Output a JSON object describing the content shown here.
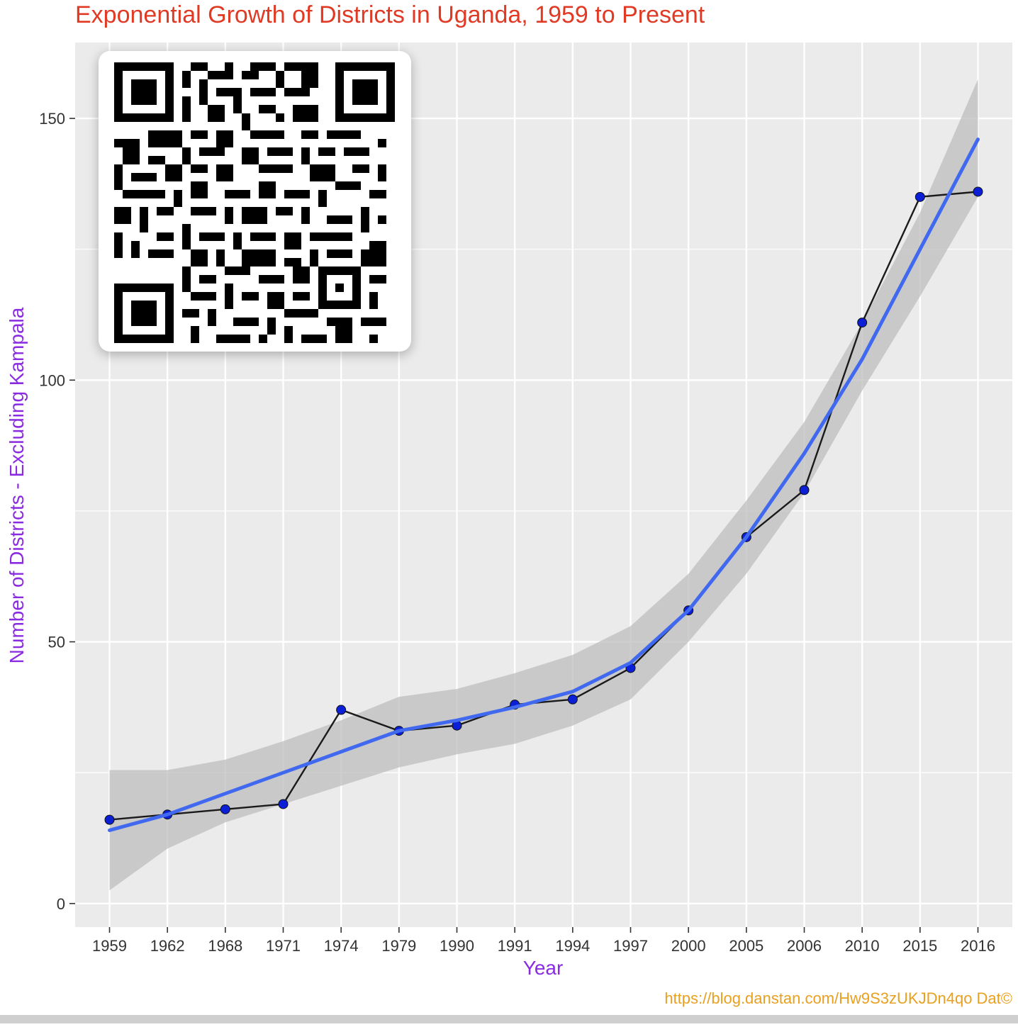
{
  "colors": {
    "title": "#e03a24",
    "axis_label": "#8a2be2",
    "credit": "#e8a020",
    "panel_bg": "#ebebeb",
    "grid": "#ffffff",
    "points": "#0a1fd6",
    "observed_line": "#1a1a1a",
    "smooth_line": "#4169f0",
    "ribbon": "#bdbdbd",
    "tick_text": "#333333"
  },
  "credit_text": "https://blog.danstan.com/Hw9S3zUKJDn4qo Dat©",
  "qr_code": {
    "icon": "qr-code-icon",
    "description_free": true
  },
  "chart_data": {
    "type": "line",
    "title": "Exponential Growth of Districts in Uganda, 1959 to Present",
    "xlabel": "Year",
    "ylabel": "Number  of Districts - Excluding Kampala",
    "categories": [
      "1959",
      "1962",
      "1968",
      "1971",
      "1974",
      "1979",
      "1990",
      "1991",
      "1994",
      "1997",
      "2000",
      "2005",
      "2006",
      "2010",
      "2015",
      "2016"
    ],
    "x_axis_kind": "discrete",
    "ylim": [
      -4.5,
      164.5
    ],
    "yticks": [
      0,
      50,
      100,
      150
    ],
    "grid": true,
    "legend": "none",
    "series": [
      {
        "kind": "observed",
        "values": [
          16,
          17,
          18,
          19,
          37,
          33,
          34,
          38,
          39,
          45,
          56,
          70,
          79,
          111,
          135,
          136
        ]
      },
      {
        "kind": "smooth",
        "values": [
          14,
          17,
          21,
          25,
          29,
          33,
          35,
          37.5,
          40.5,
          46,
          56,
          70,
          86,
          104,
          125,
          146
        ]
      }
    ],
    "confidence_band": {
      "lower": [
        2.5,
        10.5,
        15.5,
        19,
        22.5,
        26,
        28.5,
        30.5,
        34,
        39,
        50,
        63,
        78.5,
        98,
        116,
        135
      ],
      "upper": [
        25.5,
        25.5,
        27.5,
        31,
        35,
        39.5,
        41,
        44,
        47.5,
        53,
        63,
        77,
        92,
        111,
        132,
        157.5
      ]
    }
  }
}
